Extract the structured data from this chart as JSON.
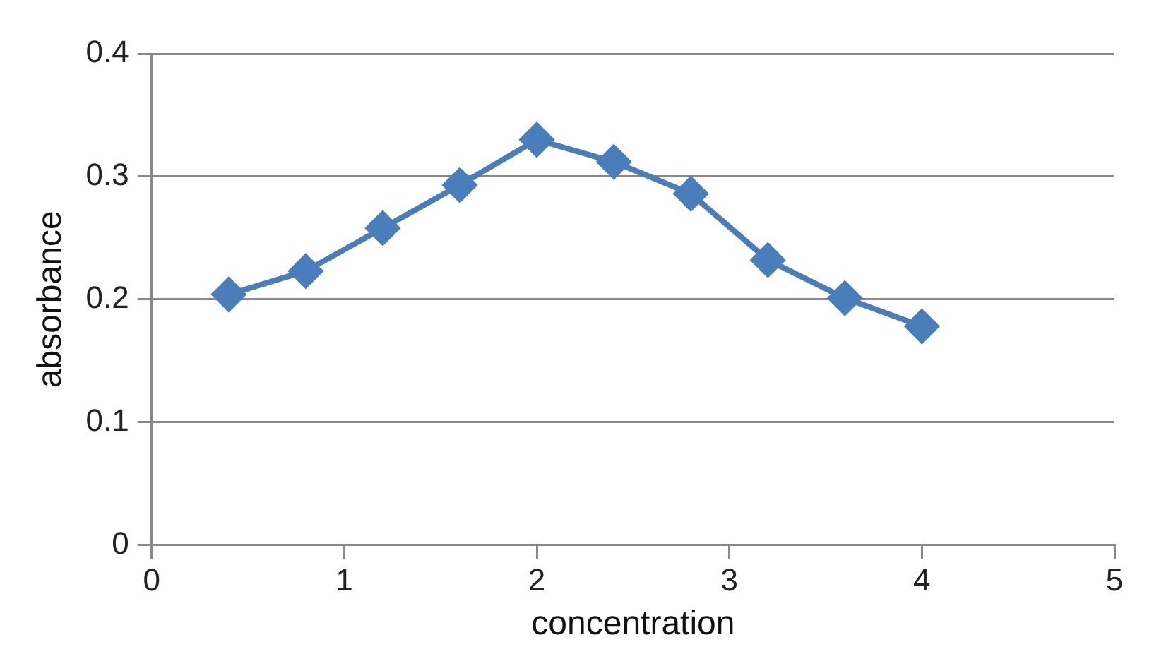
{
  "chart_data": {
    "type": "line",
    "xlabel": "concentration",
    "ylabel": "absorbance",
    "x": [
      0.4,
      0.8,
      1.2,
      1.6,
      2.0,
      2.4,
      2.8,
      3.2,
      3.6,
      4.0
    ],
    "series": [
      {
        "color": "#4a7ebb",
        "values": [
          0.204,
          0.223,
          0.258,
          0.293,
          0.33,
          0.312,
          0.286,
          0.232,
          0.201,
          0.178
        ]
      }
    ],
    "xlim": [
      0,
      5
    ],
    "xticks": [
      0,
      1,
      2,
      3,
      4,
      5
    ],
    "ylim": [
      0,
      0.4
    ],
    "yticks": [
      0,
      0.1,
      0.2,
      0.3,
      0.4
    ],
    "grid": "y",
    "legend": false,
    "marker": "diamond",
    "line_style": "solid"
  }
}
